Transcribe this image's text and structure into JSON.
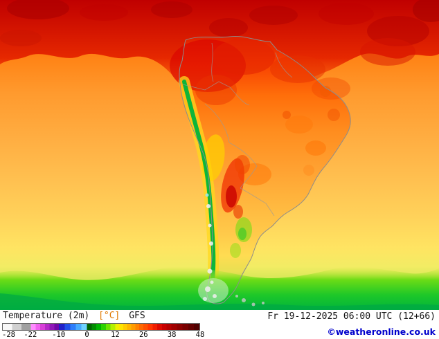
{
  "legend": {
    "title": "Temperature (2m)",
    "unit": "[°C]",
    "model": "GFS",
    "tick_labels": [
      "-28",
      "-22",
      "-10",
      "0",
      "12",
      "26",
      "38",
      "48"
    ],
    "scale_min": -28,
    "scale_max": 48,
    "segments": [
      {
        "from": -28,
        "to": -22,
        "colors": [
          "#f8f8f8",
          "#d0d0d0",
          "#a0a0a0"
        ]
      },
      {
        "from": -22,
        "to": -10,
        "colors": [
          "#ff8cff",
          "#f060f0",
          "#d840d8",
          "#b428c8",
          "#9018b8",
          "#7008a8"
        ]
      },
      {
        "from": -10,
        "to": 0,
        "colors": [
          "#2020c8",
          "#2050e8",
          "#2d7dfa",
          "#46aaff",
          "#6ed2ff"
        ]
      },
      {
        "from": 0,
        "to": 12,
        "colors": [
          "#006400",
          "#008c00",
          "#00b400",
          "#2cd200",
          "#6ee400",
          "#b4f000"
        ]
      },
      {
        "from": 12,
        "to": 26,
        "colors": [
          "#f0f000",
          "#ffe400",
          "#ffcc00",
          "#ffb400",
          "#ff9c00",
          "#ff8200",
          "#ff6800"
        ]
      },
      {
        "from": 26,
        "to": 38,
        "colors": [
          "#ff5000",
          "#ff3600",
          "#f01e00",
          "#dc0a00",
          "#c80000",
          "#b40000"
        ]
      },
      {
        "from": 38,
        "to": 48,
        "colors": [
          "#a00000",
          "#8c0000",
          "#780000",
          "#640000",
          "#500000"
        ]
      }
    ]
  },
  "footer": {
    "datetime": "Fr 19-12-2025 06:00 UTC (12+66)",
    "copyright": "©weatheronline.co.uk"
  },
  "colors": {
    "title_text": "#1a1a1a",
    "unit_text": "#e07800",
    "copyright_blue": "#0000cc"
  }
}
